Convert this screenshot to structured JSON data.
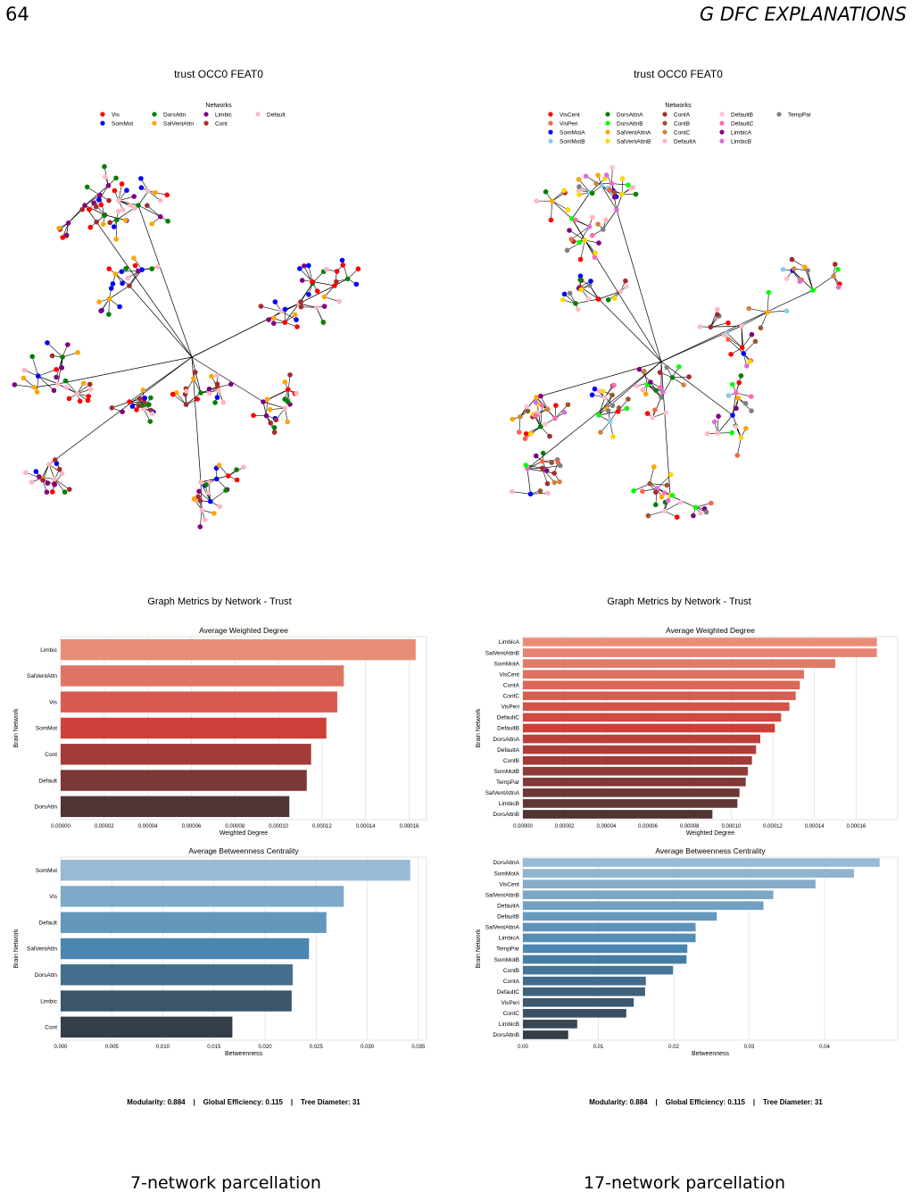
{
  "header": {
    "page_number": "64",
    "section_title": "G   DFC EXPLANATIONS"
  },
  "panels": [
    {
      "id": "left",
      "graph_title": "trust OCC0 FEAT0",
      "legend_title": "Networks",
      "legend": [
        {
          "name": "Vis",
          "color": "#ff0000"
        },
        {
          "name": "SomMot",
          "color": "#0000ff"
        },
        {
          "name": "DorsAttn",
          "color": "#008000"
        },
        {
          "name": "SalVentAttn",
          "color": "#ffa500"
        },
        {
          "name": "Limbic",
          "color": "#800080"
        },
        {
          "name": "Cont",
          "color": "#a52a2a"
        },
        {
          "name": "Default",
          "color": "#ffb6c1"
        }
      ],
      "metrics_title": "Graph Metrics by Network - Trust",
      "footer": "Modularity: 0.884    |    Global Efficiency: 0.115    |    Tree Diameter: 31",
      "caption": "7-network parcellation"
    },
    {
      "id": "right",
      "graph_title": "trust OCC0 FEAT0",
      "legend_title": "Networks",
      "legend": [
        {
          "name": "VisCent",
          "color": "#ff0000"
        },
        {
          "name": "VisPeri",
          "color": "#ff6347"
        },
        {
          "name": "SomMotA",
          "color": "#0000ff"
        },
        {
          "name": "SomMotB",
          "color": "#87ceeb"
        },
        {
          "name": "DorsAttnA",
          "color": "#008000"
        },
        {
          "name": "DorsAttnB",
          "color": "#00ff00"
        },
        {
          "name": "SalVentAttnA",
          "color": "#ffa500"
        },
        {
          "name": "SalVentAttnB",
          "color": "#ffd700"
        },
        {
          "name": "ContA",
          "color": "#a52a2a"
        },
        {
          "name": "ContB",
          "color": "#a0522d"
        },
        {
          "name": "ContC",
          "color": "#cd853f"
        },
        {
          "name": "DefaultA",
          "color": "#ffb6c1"
        },
        {
          "name": "DefaultB",
          "color": "#ffc0cb"
        },
        {
          "name": "DefaultC",
          "color": "#ff69b4"
        },
        {
          "name": "LimbicA",
          "color": "#800080"
        },
        {
          "name": "LimbicB",
          "color": "#da70d6"
        },
        {
          "name": "TempPar",
          "color": "#808080"
        }
      ],
      "metrics_title": "Graph Metrics by Network - Trust",
      "footer": "Modularity: 0.884    |    Global Efficiency: 0.115    |    Tree Diameter: 31",
      "caption": "17-network parcellation"
    }
  ],
  "chart_data": [
    {
      "type": "bar",
      "orientation": "horizontal",
      "title": "Average Weighted Degree",
      "xlabel": "Weighted Degree",
      "ylabel": "Brain Network",
      "categories": [
        "Limbic",
        "SalVentAttn",
        "Vis",
        "SomMot",
        "Cont",
        "Default",
        "DorsAttn"
      ],
      "values": [
        0.000163,
        0.00013,
        0.000127,
        0.000122,
        0.000115,
        0.000113,
        0.000105
      ],
      "xlim": [
        0,
        0.000168
      ],
      "ticks": [
        0,
        2e-05,
        4e-05,
        6e-05,
        8e-05,
        0.0001,
        0.00012,
        0.00014,
        0.00016
      ],
      "tick_labels": [
        "0.00000",
        "0.00002",
        "0.00004",
        "0.00006",
        "0.00008",
        "0.00010",
        "0.00012",
        "0.00014",
        "0.00016"
      ],
      "palette": "reds_d",
      "grid": true
    },
    {
      "type": "bar",
      "orientation": "horizontal",
      "title": "Average Betweenness Centrality",
      "xlabel": "Betweenness",
      "ylabel": "Brain Network",
      "categories": [
        "SomMot",
        "Vis",
        "Default",
        "SalVentAttn",
        "DorsAttn",
        "Limbic",
        "Cont"
      ],
      "values": [
        0.0342,
        0.0277,
        0.026,
        0.0243,
        0.0227,
        0.0226,
        0.0168
      ],
      "xlim": [
        0,
        0.0358
      ],
      "ticks": [
        0,
        0.005,
        0.01,
        0.015,
        0.02,
        0.025,
        0.03,
        0.035
      ],
      "tick_labels": [
        "0.000",
        "0.005",
        "0.010",
        "0.015",
        "0.020",
        "0.025",
        "0.030",
        "0.035"
      ],
      "palette": "blues_d",
      "grid": true
    },
    {
      "type": "bar",
      "orientation": "horizontal",
      "title": "Average Weighted Degree",
      "xlabel": "Weighted Degree",
      "ylabel": "Brain Network",
      "categories": [
        "LimbicA",
        "SalVentAttnB",
        "SomMotA",
        "VisCent",
        "ContA",
        "ContC",
        "VisPeri",
        "DefaultC",
        "DefaultB",
        "DorsAttnA",
        "DefaultA",
        "ContB",
        "SomMotB",
        "TempPar",
        "SalVentAttnA",
        "LimbicB",
        "DorsAttnB"
      ],
      "values": [
        0.00017,
        0.00017,
        0.00015,
        0.000135,
        0.000133,
        0.000131,
        0.000128,
        0.000124,
        0.000121,
        0.000114,
        0.000112,
        0.00011,
        0.000108,
        0.000107,
        0.000104,
        0.000103,
        9.1e-05
      ],
      "xlim": [
        0,
        0.00018
      ],
      "ticks": [
        0,
        2e-05,
        4e-05,
        6e-05,
        8e-05,
        0.0001,
        0.00012,
        0.00014,
        0.00016
      ],
      "tick_labels": [
        "0.00000",
        "0.00002",
        "0.00004",
        "0.00006",
        "0.00008",
        "0.00010",
        "0.00012",
        "0.00014",
        "0.00016"
      ],
      "palette": "reds_d",
      "grid": true
    },
    {
      "type": "bar",
      "orientation": "horizontal",
      "title": "Average Betweenness Centrality",
      "xlabel": "Betweenness",
      "ylabel": "Brain Network",
      "categories": [
        "DorsAttnA",
        "SomMotA",
        "VisCent",
        "SalVentAttnB",
        "DefaultA",
        "DefaultB",
        "SalVentAttnA",
        "LimbicA",
        "TempPar",
        "SomMotB",
        "ContB",
        "ContA",
        "DefaultC",
        "VisPeri",
        "ContC",
        "LimbicB",
        "DorsAttnB"
      ],
      "values": [
        0.0473,
        0.0439,
        0.0388,
        0.0332,
        0.0319,
        0.0257,
        0.0229,
        0.0229,
        0.0218,
        0.0217,
        0.0199,
        0.0163,
        0.0162,
        0.0147,
        0.0137,
        0.0072,
        0.006
      ],
      "xlim": [
        0,
        0.0497
      ],
      "ticks": [
        0,
        0.01,
        0.02,
        0.03,
        0.04
      ],
      "tick_labels": [
        "0.00",
        "0.01",
        "0.02",
        "0.03",
        "0.04"
      ],
      "palette": "blues_d",
      "grid": true
    }
  ]
}
